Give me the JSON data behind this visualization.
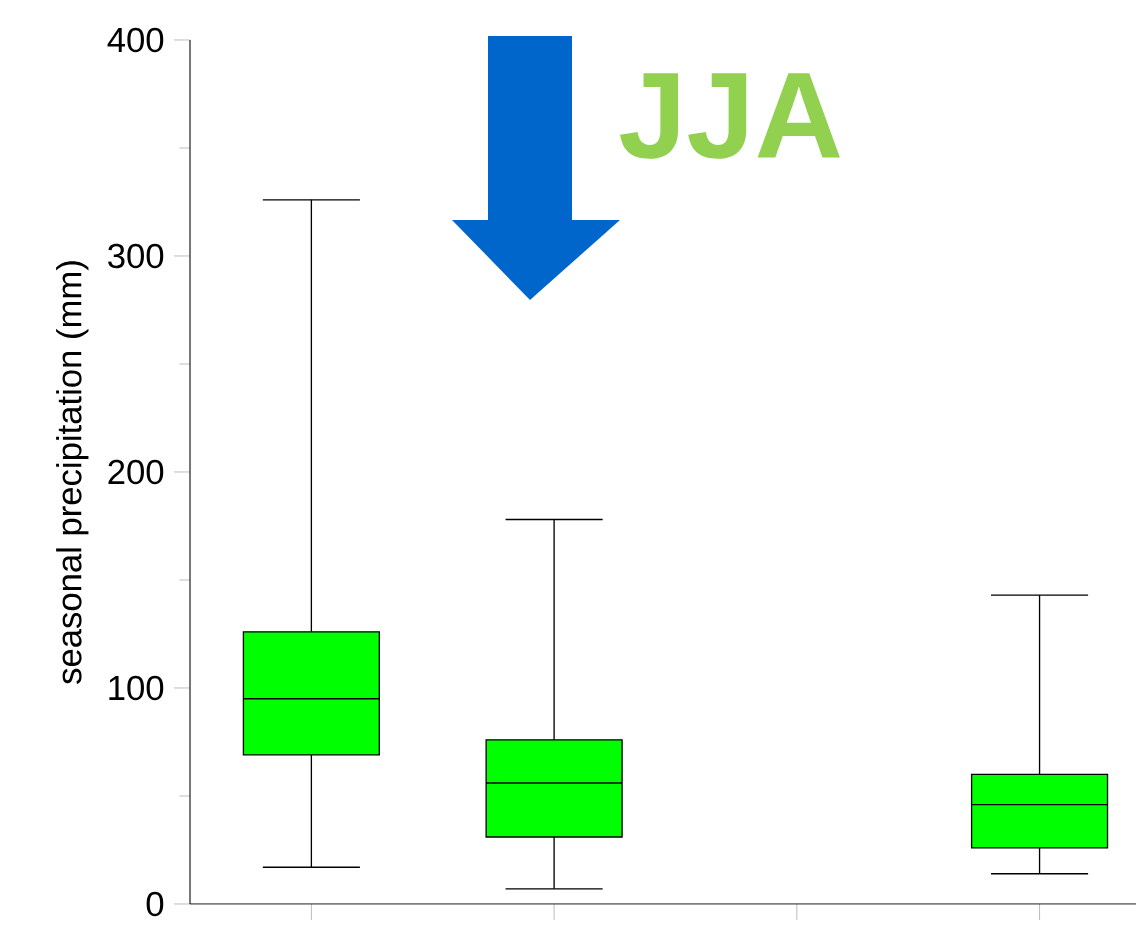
{
  "chart_data": {
    "type": "box",
    "ylabel": "seasonal precipitation (mm)",
    "categories": [
      null,
      null,
      null,
      null
    ],
    "color": "#00ff00",
    "boxes": [
      {
        "low": 17,
        "q1": 69,
        "median": 95,
        "q3": 126,
        "high": 326
      },
      {
        "low": 7,
        "q1": 31,
        "median": 56,
        "q3": 76,
        "high": 178
      },
      null,
      {
        "low": 14,
        "q1": 26,
        "median": 46,
        "q3": 60,
        "high": 143
      }
    ],
    "ylim": [
      0,
      400
    ],
    "yticks": [
      0,
      100,
      200,
      300,
      400
    ],
    "tick_labels": "y",
    "annotations": [
      "JJA"
    ]
  }
}
